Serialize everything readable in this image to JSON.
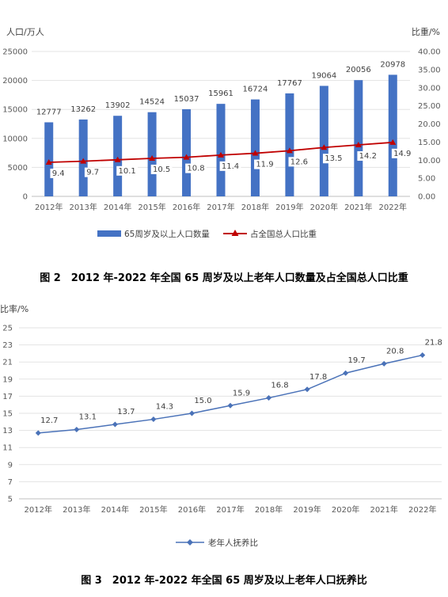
{
  "figure2": {
    "caption": "图 2　2012 年-2022 年全国 65 周岁及以上老年人口数量及占全国总人口比重",
    "chart_data": {
      "type": "bar",
      "categories": [
        "2012年",
        "2013年",
        "2014年",
        "2015年",
        "2016年",
        "2017年",
        "2018年",
        "2019年",
        "2020年",
        "2021年",
        "2022年"
      ],
      "series": [
        {
          "name": "65周岁及以上人口数量",
          "type": "bar",
          "axis": "left",
          "values": [
            12777,
            13262,
            13902,
            14524,
            15037,
            15961,
            16724,
            17767,
            19064,
            20056,
            20978
          ],
          "labels": [
            "12777",
            "13262",
            "13902",
            "14524",
            "15037",
            "15961",
            "16724",
            "17767",
            "19064",
            "20056",
            "20978"
          ],
          "color": "#4472C4"
        },
        {
          "name": "占全国总人口比重",
          "type": "line",
          "axis": "right",
          "values": [
            9.4,
            9.7,
            10.1,
            10.5,
            10.8,
            11.4,
            11.9,
            12.6,
            13.5,
            14.2,
            14.9
          ],
          "labels": [
            "9.4",
            "9.7",
            "10.1",
            "10.5",
            "10.8",
            "11.4",
            "11.9",
            "12.6",
            "13.5",
            "14.2",
            "14.9"
          ],
          "color": "#C00000"
        }
      ],
      "ylabel": "人口/万人",
      "ylabel_right": "比重/%",
      "ylim": [
        0,
        25000
      ],
      "ylim_right": [
        0,
        40
      ],
      "yticks": [
        "0",
        "5000",
        "10000",
        "15000",
        "20000",
        "25000"
      ],
      "yticks_values": [
        0,
        5000,
        10000,
        15000,
        20000,
        25000
      ],
      "yticks_right": [
        "0.00",
        "5.00",
        "10.00",
        "15.00",
        "20.00",
        "25.00",
        "30.00",
        "35.00",
        "40.00"
      ],
      "yticks_right_values": [
        0,
        5,
        10,
        15,
        20,
        25,
        30,
        35,
        40
      ],
      "grid": true,
      "legend_position": "bottom"
    }
  },
  "figure3": {
    "caption": "图 3　2012 年-2022 年全国 65 周岁及以上老年人口抚养比",
    "chart_data": {
      "type": "line",
      "categories": [
        "2012年",
        "2013年",
        "2014年",
        "2015年",
        "2016年",
        "2017年",
        "2018年",
        "2019年",
        "2020年",
        "2021年",
        "2022年"
      ],
      "series": [
        {
          "name": "老年人抚养比",
          "values": [
            12.7,
            13.1,
            13.7,
            14.3,
            15.0,
            15.9,
            16.8,
            17.8,
            19.7,
            20.8,
            21.8
          ],
          "labels": [
            "12.7",
            "13.1",
            "13.7",
            "14.3",
            "15.0",
            "15.9",
            "16.8",
            "17.8",
            "19.7",
            "20.8",
            "21.8"
          ],
          "color": "#4A72B8"
        }
      ],
      "ylabel": "比率/%",
      "ylim": [
        5,
        25
      ],
      "yticks": [
        "5",
        "7",
        "9",
        "11",
        "13",
        "15",
        "17",
        "19",
        "21",
        "23",
        "25"
      ],
      "yticks_values": [
        5,
        7,
        9,
        11,
        13,
        15,
        17,
        19,
        21,
        23,
        25
      ],
      "grid": true,
      "legend_position": "bottom"
    }
  }
}
